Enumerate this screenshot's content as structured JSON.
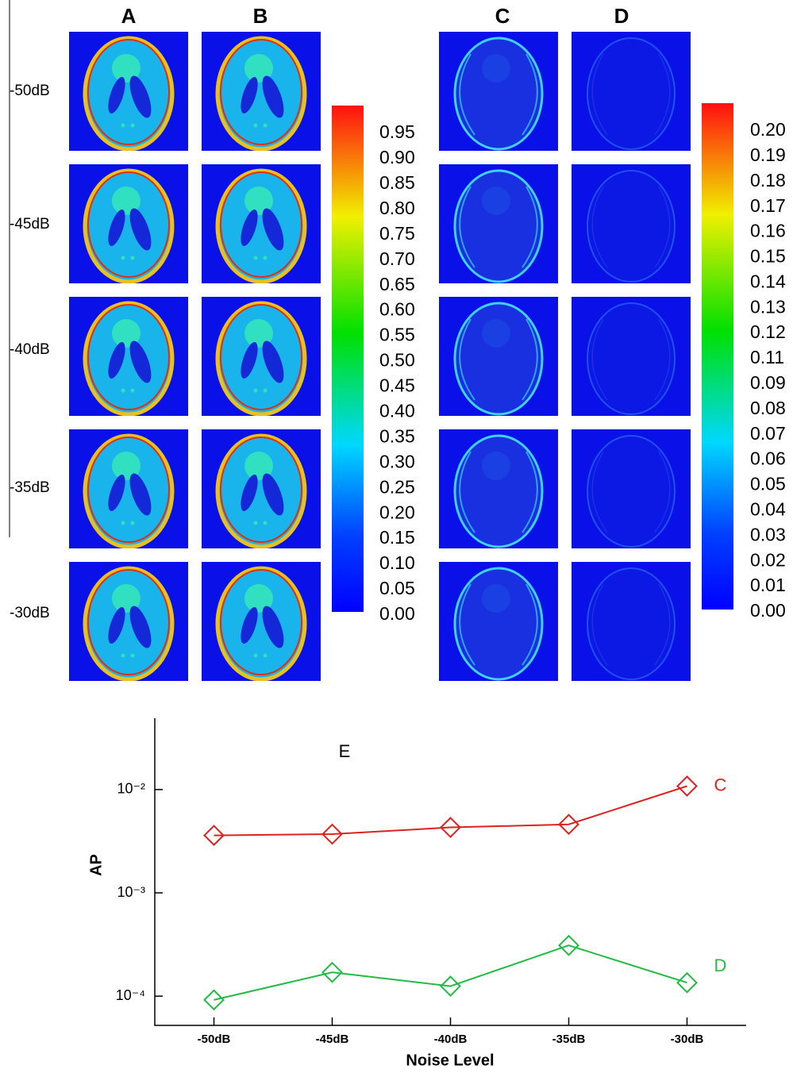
{
  "columns": [
    "A",
    "B",
    "C",
    "D"
  ],
  "rows": [
    "-50dB",
    "-45dB",
    "-40dB",
    "-35dB",
    "-30dB"
  ],
  "colorbars": [
    {
      "ticks": [
        "0.00",
        "0.05",
        "0.10",
        "0.15",
        "0.20",
        "0.25",
        "0.30",
        "0.35",
        "0.40",
        "0.45",
        "0.50",
        "0.55",
        "0.60",
        "0.65",
        "0.70",
        "0.75",
        "0.80",
        "0.85",
        "0.90",
        "0.95"
      ]
    },
    {
      "ticks": [
        "0.00",
        "0.01",
        "0.02",
        "0.03",
        "0.04",
        "0.05",
        "0.06",
        "0.07",
        "0.08",
        "0.09",
        "0.11",
        "0.12",
        "0.13",
        "0.14",
        "0.15",
        "0.16",
        "0.17",
        "0.18",
        "0.19",
        "0.20"
      ]
    }
  ],
  "chart_data": {
    "type": "line",
    "title": "E",
    "x_label": "Noise Level",
    "y_label": "AP",
    "categories": [
      "-50dB",
      "-45dB",
      "-40dB",
      "-35dB",
      "-30dB"
    ],
    "log_y": true,
    "ylim": [
      5.9e-05,
      0.049
    ],
    "yticks": [
      {
        "value": 0.0001,
        "label": "10⁻⁴"
      },
      {
        "value": 0.001,
        "label": "10⁻³"
      },
      {
        "value": 0.01,
        "label": "10⁻²"
      }
    ],
    "marker": "diamond",
    "series": [
      {
        "name": "C",
        "color": "#dd2222",
        "values": [
          0.0036,
          0.0037,
          0.0043,
          0.0046,
          0.0108
        ]
      },
      {
        "name": "D",
        "color": "#22bb44",
        "values": [
          9.2e-05,
          0.00017,
          0.000125,
          0.00031,
          0.000135
        ]
      }
    ]
  }
}
